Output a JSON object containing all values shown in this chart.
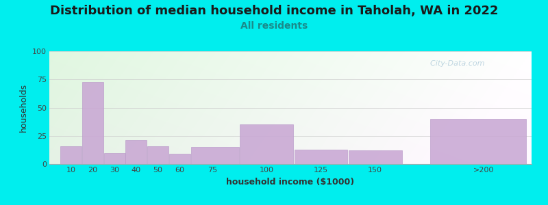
{
  "title": "Distribution of median household income in Taholah, WA in 2022",
  "subtitle": "All residents",
  "xlabel": "household income ($1000)",
  "ylabel": "households",
  "background_outer": "#00EEEE",
  "bar_color": "#c9a8d4",
  "bar_edge_color": "#b898c8",
  "ylim": [
    0,
    100
  ],
  "yticks": [
    0,
    25,
    50,
    75,
    100
  ],
  "categories": [
    "10",
    "20",
    "30",
    "40",
    "50",
    "60",
    "75",
    "100",
    "125",
    "150",
    ">200"
  ],
  "values": [
    16,
    73,
    10,
    21,
    16,
    9,
    15,
    35,
    13,
    12,
    40
  ],
  "left_edges": [
    5,
    15,
    25,
    35,
    45,
    55,
    65,
    87.5,
    112.5,
    137.5,
    175
  ],
  "widths": [
    10,
    10,
    10,
    10,
    10,
    10,
    22.5,
    25,
    25,
    25,
    45
  ],
  "xtick_positions": [
    10,
    20,
    30,
    40,
    50,
    60,
    75,
    100,
    125,
    150,
    200
  ],
  "xtick_labels": [
    "10",
    "20",
    "30",
    "40",
    "50",
    "60",
    "75",
    "100",
    "125",
    "150",
    ">200"
  ],
  "xlim": [
    0,
    222
  ],
  "title_fontsize": 13,
  "subtitle_fontsize": 10,
  "axis_label_fontsize": 9,
  "tick_fontsize": 8,
  "watermark_text": "  City-Data.com"
}
